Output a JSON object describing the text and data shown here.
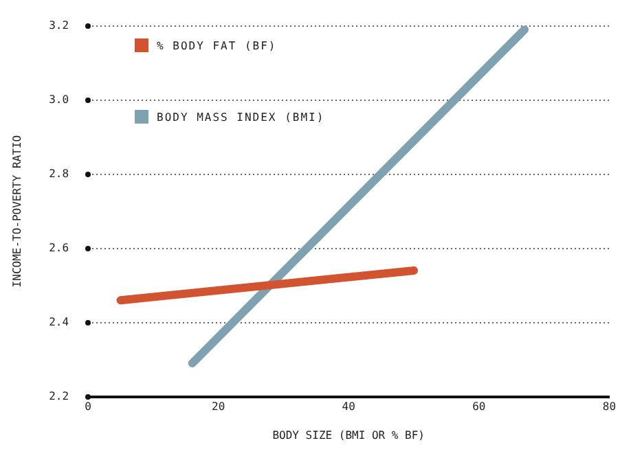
{
  "chart_data": {
    "type": "line",
    "xlabel": "BODY SIZE (BMI OR % BF)",
    "ylabel": "INCOME-TO-POVERTY RATIO",
    "series": [
      {
        "name": "% BODY FAT (BF)",
        "color": "#d2532f",
        "x": [
          5,
          50
        ],
        "values": [
          2.46,
          2.54
        ]
      },
      {
        "name": "BODY MASS INDEX (BMI)",
        "color": "#7fa2b0",
        "x": [
          16,
          67
        ],
        "values": [
          2.29,
          3.19
        ]
      }
    ],
    "xlim": [
      0,
      80
    ],
    "xticks": [
      0,
      20,
      40,
      60,
      80
    ],
    "ylim": [
      2.2,
      3.2
    ],
    "yticks": [
      2.2,
      2.4,
      2.6,
      2.8,
      {
        "value": 3,
        "label": "3.0"
      },
      3.2
    ],
    "grid": "y",
    "legend": "top left",
    "marker": "none",
    "line_style": "solid"
  }
}
